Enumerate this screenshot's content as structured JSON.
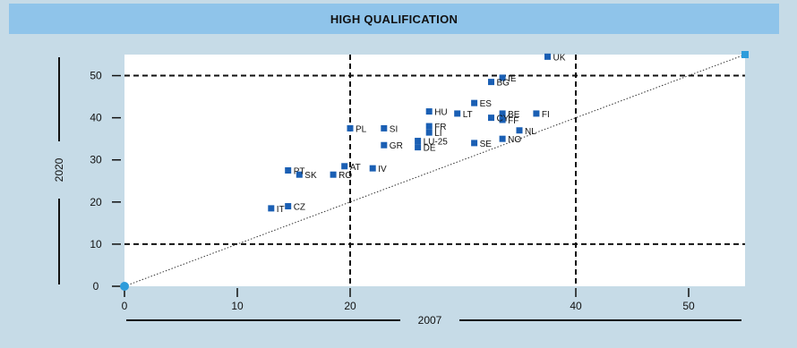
{
  "chart_data": {
    "type": "scatter",
    "title": "HIGH QUALIFICATION",
    "xlabel": "2007",
    "ylabel": "2020",
    "xlim": [
      0,
      55
    ],
    "ylim": [
      0,
      55
    ],
    "xticks": [
      0,
      10,
      20,
      40,
      50
    ],
    "yticks": [
      0,
      10,
      20,
      30,
      40,
      50
    ],
    "grid": "dashed at 20 and 40 on x; at 10 and 50 on y",
    "reference_line": "diagonal y = x (dotted)",
    "colors": {
      "marker": "#1a5fb4",
      "origin_marker": "#2d9cdb",
      "background": "#c6dbe7",
      "title_bar": "#8fc4ea"
    },
    "points": [
      {
        "label": "UK",
        "x": 37.5,
        "y": 54.5
      },
      {
        "label": "IE",
        "x": 33.5,
        "y": 49.5
      },
      {
        "label": "BG",
        "x": 32.5,
        "y": 48.5
      },
      {
        "label": "ES",
        "x": 31.0,
        "y": 43.5
      },
      {
        "label": "BE",
        "x": 33.5,
        "y": 41.0
      },
      {
        "label": "HU",
        "x": 27.0,
        "y": 41.5
      },
      {
        "label": "FI",
        "x": 36.5,
        "y": 41.0
      },
      {
        "label": "LT",
        "x": 29.5,
        "y": 41.0
      },
      {
        "label": "CY",
        "x": 32.5,
        "y": 40.0
      },
      {
        "label": "FF",
        "x": 33.5,
        "y": 39.5
      },
      {
        "label": "FR",
        "x": 27.0,
        "y": 38.0
      },
      {
        "label": "LI",
        "x": 27.0,
        "y": 36.5
      },
      {
        "label": "SI",
        "x": 23.0,
        "y": 37.5
      },
      {
        "label": "PL",
        "x": 20.0,
        "y": 37.5
      },
      {
        "label": "NL",
        "x": 35.0,
        "y": 37.0
      },
      {
        "label": "LU-25",
        "x": 26.0,
        "y": 34.5
      },
      {
        "label": "DE",
        "x": 26.0,
        "y": 33.0
      },
      {
        "label": "GR",
        "x": 23.0,
        "y": 33.5
      },
      {
        "label": "SE",
        "x": 31.0,
        "y": 34.0
      },
      {
        "label": "NO",
        "x": 33.5,
        "y": 35.0
      },
      {
        "label": "IV",
        "x": 22.0,
        "y": 28.0
      },
      {
        "label": "AT",
        "x": 19.5,
        "y": 28.5
      },
      {
        "label": "RO",
        "x": 18.5,
        "y": 26.5
      },
      {
        "label": "SK",
        "x": 15.5,
        "y": 26.5
      },
      {
        "label": "PT",
        "x": 14.5,
        "y": 27.5
      },
      {
        "label": "CZ",
        "x": 14.5,
        "y": 19.0
      },
      {
        "label": "IT",
        "x": 13.0,
        "y": 18.5
      },
      {
        "label": "",
        "x": 55.0,
        "y": 55.0
      },
      {
        "label": "",
        "x": 0.0,
        "y": 0.0
      }
    ]
  }
}
